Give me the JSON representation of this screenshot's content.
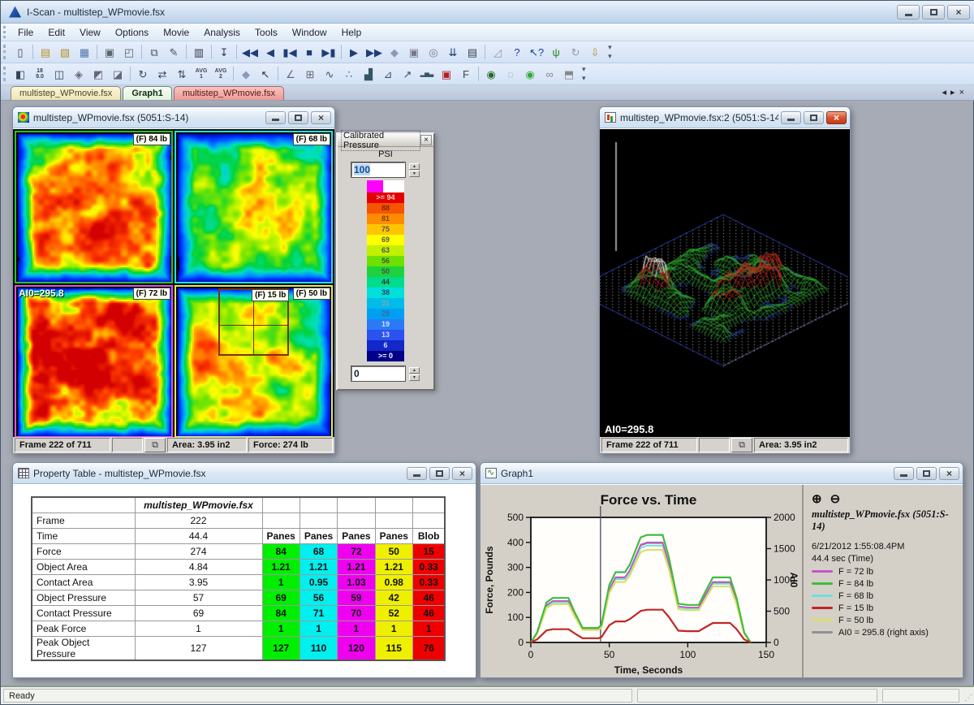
{
  "window": {
    "title": "I-Scan - multistep_WPmovie.fsx"
  },
  "menu": [
    "File",
    "Edit",
    "View",
    "Options",
    "Movie",
    "Analysis",
    "Tools",
    "Window",
    "Help"
  ],
  "toolbar1": [
    {
      "name": "new-file-icon",
      "glyph": "▯",
      "color": "#445"
    },
    {
      "sep": true
    },
    {
      "name": "open-file-icon",
      "glyph": "▤",
      "color": "#b8922a"
    },
    {
      "name": "open-map-icon",
      "glyph": "▧",
      "color": "#b8922a"
    },
    {
      "name": "save-icon",
      "glyph": "▦",
      "color": "#5577aa"
    },
    {
      "sep": true
    },
    {
      "name": "print-icon",
      "glyph": "▣",
      "color": "#566"
    },
    {
      "name": "print-preview-icon",
      "glyph": "◰",
      "color": "#566"
    },
    {
      "sep": true
    },
    {
      "name": "copy-icon",
      "glyph": "⧉",
      "color": "#456"
    },
    {
      "name": "edit-copy-icon",
      "glyph": "✎",
      "color": "#456"
    },
    {
      "sep": true
    },
    {
      "name": "film-strip-icon",
      "glyph": "▥",
      "color": "#334"
    },
    {
      "sep": true
    },
    {
      "name": "save-frame-icon",
      "glyph": "↧",
      "color": "#336"
    },
    {
      "sep": true
    },
    {
      "name": "rewind-icon",
      "glyph": "◀◀",
      "color": "#1d3d77"
    },
    {
      "name": "step-back-icon",
      "glyph": "◀",
      "color": "#1d3d77"
    },
    {
      "name": "first-frame-icon",
      "glyph": "▮◀",
      "color": "#1d3d77"
    },
    {
      "name": "stop-icon",
      "glyph": "■",
      "color": "#1d3d77"
    },
    {
      "name": "last-frame-icon",
      "glyph": "▶▮",
      "color": "#1d3d77"
    },
    {
      "sep": true
    },
    {
      "name": "play-icon",
      "glyph": "▶",
      "color": "#1d3d77"
    },
    {
      "name": "fast-forward-icon",
      "glyph": "▶▶",
      "color": "#1d3d77"
    },
    {
      "name": "record-icon",
      "glyph": "◆",
      "color": "#8899bb"
    },
    {
      "name": "camera-icon",
      "glyph": "▣",
      "color": "#778"
    },
    {
      "name": "find-frame-icon",
      "glyph": "◎",
      "color": "#778"
    },
    {
      "name": "drop-frames-icon",
      "glyph": "⇊",
      "color": "#1d3d77"
    },
    {
      "name": "notebook-icon",
      "glyph": "▤",
      "color": "#345"
    },
    {
      "sep": true
    },
    {
      "name": "protractor-icon",
      "glyph": "◿",
      "color": "#99a"
    },
    {
      "name": "help-icon",
      "glyph": "?",
      "color": "#1a3f9f"
    },
    {
      "name": "context-help-icon",
      "glyph": "↖?",
      "color": "#1a3f9f"
    },
    {
      "name": "wireless-icon",
      "glyph": "ψ",
      "color": "#2a8a2a"
    },
    {
      "name": "rotate-3d-icon",
      "glyph": "↻",
      "color": "#99a"
    },
    {
      "name": "open-recent-icon",
      "glyph": "⇩",
      "color": "#b8922a"
    }
  ],
  "toolbar2": [
    {
      "name": "split-view-icon",
      "glyph": "◧",
      "color": "#345"
    },
    {
      "name": "show-values-icon",
      "glyph": "18\n9.0",
      "tiny": true,
      "color": "#345"
    },
    {
      "name": "pane-layout-icon",
      "glyph": "◫",
      "color": "#345"
    },
    {
      "name": "rotation-diamond-icon",
      "glyph": "◈",
      "color": "#667"
    },
    {
      "name": "tilt-left-icon",
      "glyph": "◩",
      "color": "#667"
    },
    {
      "name": "tilt-right-icon",
      "glyph": "◪",
      "color": "#667"
    },
    {
      "sep": true
    },
    {
      "name": "rotate-view-icon",
      "glyph": "↻",
      "color": "#346"
    },
    {
      "name": "swap-axes-icon",
      "glyph": "⇄",
      "color": "#346"
    },
    {
      "name": "flip-vertical-icon",
      "glyph": "⇅",
      "color": "#346"
    },
    {
      "name": "average-1-icon",
      "glyph": "AVG\n1",
      "tiny": true,
      "color": "#445"
    },
    {
      "name": "average-2-icon",
      "glyph": "AVG\n2",
      "tiny": true,
      "color": "#445"
    },
    {
      "sep": true
    },
    {
      "name": "navigate-diamond-icon",
      "glyph": "◆",
      "color": "#8899bb"
    },
    {
      "name": "pointer-tool-icon",
      "glyph": "↖",
      "color": "#333"
    },
    {
      "sep": true
    },
    {
      "name": "angle-tool-icon",
      "glyph": "∠",
      "color": "#667"
    },
    {
      "name": "grid-tool-icon",
      "glyph": "⊞",
      "color": "#667"
    },
    {
      "name": "line-graph-icon",
      "glyph": "∿",
      "color": "#356"
    },
    {
      "name": "scatter-graph-icon",
      "glyph": "∴",
      "color": "#356"
    },
    {
      "name": "area-graph-icon",
      "glyph": "▟",
      "color": "#356"
    },
    {
      "name": "peak-graph-icon",
      "glyph": "⊿",
      "color": "#356"
    },
    {
      "name": "trace-graph-icon",
      "glyph": "↗",
      "color": "#356"
    },
    {
      "name": "histogram-icon",
      "glyph": "▂▅▃",
      "tiny": true,
      "color": "#356"
    },
    {
      "name": "print-report-icon",
      "glyph": "▣",
      "color": "#b02020"
    },
    {
      "name": "force-file-icon",
      "glyph": "F",
      "color": "#444"
    },
    {
      "sep": true
    },
    {
      "name": "movie-capture-icon",
      "glyph": "◉",
      "color": "#2a6a2a"
    },
    {
      "name": "video-camera-icon",
      "glyph": "◌",
      "color": "#888"
    },
    {
      "name": "video-export-icon",
      "glyph": "◉",
      "color": "#33aa33"
    },
    {
      "name": "link-frames-icon",
      "glyph": "∞",
      "color": "#888"
    },
    {
      "name": "snapshot-icon",
      "glyph": "⬒",
      "color": "#888"
    }
  ],
  "tabs": [
    {
      "label": "multistep_WPmovie.fsx",
      "style": "cream",
      "active": false
    },
    {
      "label": "Graph1",
      "style": "green",
      "active": true
    },
    {
      "label": "multistep_WPmovie.fsx",
      "style": "pink",
      "active": false
    }
  ],
  "map_window": {
    "title": "multistep_WPmovie.fsx (5051:S-14)",
    "quadrants": [
      {
        "label": "(F) 84 lb",
        "border": "#29c129"
      },
      {
        "label": "(F) 68 lb",
        "border": "#25e0e0"
      },
      {
        "label": "(F) 72 lb",
        "border": "#e052e0",
        "overlay": "AI0=295.8"
      },
      {
        "label": "(F) 50 lb",
        "border": "#e8e862",
        "box_label": "(F) 15 lb"
      }
    ],
    "status": {
      "frame": "Frame 222 of 711",
      "area": "Area: 3.95 in2",
      "force": "Force: 274 lb"
    }
  },
  "legend_window": {
    "title": "Calibrated Pressure",
    "units": "PSI",
    "max_value": "100",
    "min_value": "0",
    "top_color": "#ff00ff",
    "bands": [
      {
        "label": ">= 94",
        "color": "#e40000",
        "text": "#ffd0d0"
      },
      {
        "label": "88",
        "color": "#f55400",
        "text": "#8a2000"
      },
      {
        "label": "81",
        "color": "#ff8c00",
        "text": "#7a4000"
      },
      {
        "label": "75",
        "color": "#ffc400",
        "text": "#555"
      },
      {
        "label": "69",
        "color": "#ffff00",
        "text": "#555"
      },
      {
        "label": "63",
        "color": "#c2f000",
        "text": "#555"
      },
      {
        "label": "56",
        "color": "#6ee000",
        "text": "#454"
      },
      {
        "label": "50",
        "color": "#1ed23e",
        "text": "#454"
      },
      {
        "label": "44",
        "color": "#00dc8e",
        "text": "#333"
      },
      {
        "label": "38",
        "color": "#00e0da",
        "text": "#346"
      },
      {
        "label": "31",
        "color": "#00bce8",
        "text": "#88a0b0"
      },
      {
        "label": "25",
        "color": "#009ff2",
        "text": "#3a6a9a"
      },
      {
        "label": "19",
        "color": "#2a7af8",
        "text": "#cfe0f8"
      },
      {
        "label": "13",
        "color": "#2a52f0",
        "text": "#cfd8f8"
      },
      {
        "label": "6",
        "color": "#1228c8",
        "text": "#d8d8f8"
      },
      {
        "label": ">= 0",
        "color": "#000088",
        "text": "#ffffff"
      }
    ]
  },
  "view3d_window": {
    "title": "multistep_WPmovie.fsx:2 (5051:S-14)",
    "overlay": "AI0=295.8",
    "status": {
      "frame": "Frame 222 of 711",
      "area": "Area: 3.95 in2"
    }
  },
  "property_table": {
    "title": "Property Table - multistep_WPmovie.fsx",
    "file_header": "multistep_WPmovie.fsx",
    "col_colors": [
      "#00ef00",
      "#00efef",
      "#ef00ef",
      "#efef00",
      "#ef0000"
    ],
    "rows": [
      {
        "name": "Frame",
        "value": "222",
        "cellStyle": "plain",
        "cells": [
          "",
          "",
          "",
          "",
          ""
        ]
      },
      {
        "name": "Time",
        "value": "44.4",
        "cellStyle": "header",
        "cells": [
          "Panes",
          "Panes",
          "Panes",
          "Panes",
          "Blob"
        ]
      },
      {
        "name": "Force",
        "value": "274",
        "cellStyle": "colored",
        "cells": [
          "84",
          "68",
          "72",
          "50",
          "15"
        ]
      },
      {
        "name": "Object Area",
        "value": "4.84",
        "cellStyle": "colored",
        "cells": [
          "1.21",
          "1.21",
          "1.21",
          "1.21",
          "0.33"
        ]
      },
      {
        "name": "Contact Area",
        "value": "3.95",
        "cellStyle": "colored",
        "cells": [
          "1",
          "0.95",
          "1.03",
          "0.98",
          "0.33"
        ]
      },
      {
        "name": "Object Pressure",
        "value": "57",
        "cellStyle": "colored",
        "cells": [
          "69",
          "56",
          "59",
          "42",
          "46"
        ]
      },
      {
        "name": "Contact Pressure",
        "value": "69",
        "cellStyle": "colored",
        "cells": [
          "84",
          "71",
          "70",
          "52",
          "46"
        ]
      },
      {
        "name": "Peak Force",
        "value": "1",
        "cellStyle": "colored",
        "cells": [
          "1",
          "1",
          "1",
          "1",
          "1"
        ]
      },
      {
        "name": "Peak Object Pressure",
        "value": "127",
        "cellStyle": "colored",
        "cells": [
          "127",
          "110",
          "120",
          "115",
          "76"
        ]
      }
    ]
  },
  "graph_window": {
    "title": "Graph1",
    "info_title": "multistep_WPmovie.fsx (5051:S-14)",
    "timestamp": "6/21/2012 1:55:08.4PM",
    "cursor_label": "44.4 sec (Time)",
    "zoom_in_icon": "⊕",
    "zoom_out_icon": "⊖",
    "legend": [
      {
        "label": "F = 72 lb",
        "color": "#c653c6"
      },
      {
        "label": "F = 84 lb",
        "color": "#3fbc3f"
      },
      {
        "label": "F = 68 lb",
        "color": "#6fdede"
      },
      {
        "label": "F = 15 lb",
        "color": "#c22525"
      },
      {
        "label": "F = 50 lb",
        "color": "#dede6a"
      },
      {
        "label": "AI0 = 295.8  (right axis)",
        "color": "#8f8f8f"
      }
    ]
  },
  "chart_data": {
    "type": "line",
    "title": "Force vs. Time",
    "xlabel": "Time, Seconds",
    "ylabel": "Force, Pounds",
    "y2label": "AI0",
    "xlim": [
      0,
      150
    ],
    "ylim": [
      0,
      500
    ],
    "y2lim": [
      0,
      2000
    ],
    "xticks": [
      0,
      50,
      100,
      150
    ],
    "yticks": [
      0,
      100,
      200,
      300,
      400,
      500
    ],
    "y2ticks": [
      0,
      500,
      1000,
      1500,
      2000
    ],
    "grid": false,
    "legend_position": "right-panel",
    "cursor_x": 44.4,
    "x": [
      0,
      4,
      10,
      14,
      24,
      28,
      33,
      43,
      45,
      50,
      54,
      60,
      63,
      70,
      74,
      84,
      88,
      94,
      100,
      107,
      111,
      116,
      127,
      131,
      136,
      140
    ],
    "series": [
      {
        "name": "AI0 = 295.8",
        "color": "#8f8f8f",
        "axis": "right",
        "width": 1.6,
        "values": [
          0,
          148,
          592,
          660,
          660,
          444,
          214,
          214,
          259,
          848,
          1034,
          1034,
          1143,
          1548,
          1584,
          1584,
          1253,
          572,
          553,
          553,
          737,
          958,
          958,
          663,
          148,
          0
        ]
      },
      {
        "name": "F = 68 lb",
        "color": "#6fdede",
        "axis": "left",
        "width": 1.8,
        "values": [
          0,
          36,
          144,
          160,
          160,
          108,
          52,
          52,
          63,
          207,
          253,
          253,
          279,
          378,
          387,
          387,
          306,
          140,
          135,
          135,
          180,
          234,
          234,
          162,
          36,
          0
        ]
      },
      {
        "name": "F = 72 lb",
        "color": "#c653c6",
        "axis": "left",
        "width": 1.8,
        "values": [
          0,
          37,
          149,
          166,
          166,
          112,
          54,
          54,
          65,
          214,
          261,
          261,
          288,
          391,
          400,
          400,
          316,
          144,
          140,
          140,
          186,
          242,
          242,
          167,
          37,
          0
        ]
      },
      {
        "name": "F = 50 lb",
        "color": "#dede6a",
        "axis": "left",
        "width": 2.2,
        "values": [
          0,
          34,
          138,
          153,
          153,
          103,
          50,
          50,
          60,
          198,
          242,
          242,
          267,
          361,
          370,
          370,
          292,
          133,
          129,
          129,
          172,
          224,
          224,
          155,
          34,
          0
        ]
      },
      {
        "name": "F = 84 lb",
        "color": "#3fbc3f",
        "axis": "left",
        "width": 2.2,
        "values": [
          0,
          40,
          160,
          178,
          178,
          120,
          58,
          58,
          70,
          230,
          281,
          281,
          310,
          420,
          430,
          430,
          340,
          155,
          150,
          150,
          200,
          260,
          260,
          180,
          40,
          0
        ]
      },
      {
        "name": "F = 15 lb",
        "color": "#c22525",
        "axis": "left",
        "width": 2.2,
        "values": [
          0,
          12,
          48,
          53,
          53,
          36,
          17,
          17,
          21,
          69,
          84,
          84,
          93,
          126,
          131,
          131,
          102,
          47,
          45,
          45,
          60,
          78,
          78,
          54,
          12,
          0
        ]
      }
    ]
  },
  "status_bar": {
    "text": "Ready"
  }
}
